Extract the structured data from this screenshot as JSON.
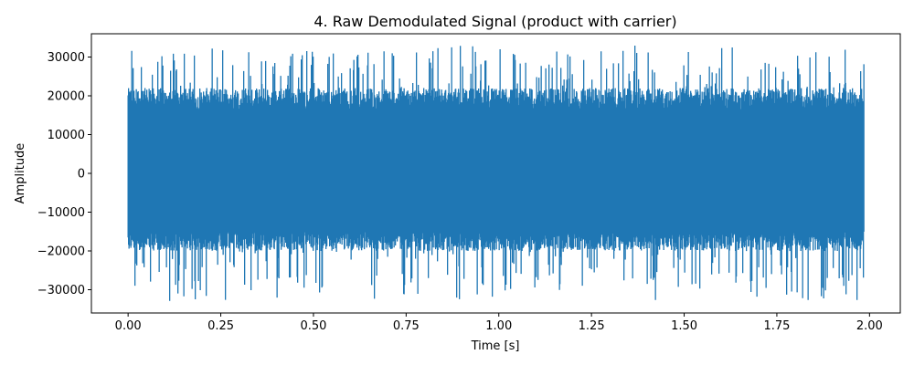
{
  "chart_data": {
    "type": "line",
    "title": "4. Raw Demodulated Signal (product with carrier)",
    "xlabel": "Time [s]",
    "ylabel": "Amplitude",
    "xlim": [
      -0.099,
      2.083
    ],
    "ylim": [
      -36000,
      36000
    ],
    "xticks": [
      0.0,
      0.25,
      0.5,
      0.75,
      1.0,
      1.25,
      1.5,
      1.75,
      2.0
    ],
    "xtick_labels": [
      "0.00",
      "0.25",
      "0.50",
      "0.75",
      "1.00",
      "1.25",
      "1.50",
      "1.75",
      "2.00"
    ],
    "yticks": [
      -30000,
      -20000,
      -10000,
      0,
      10000,
      20000,
      30000
    ],
    "ytick_labels": [
      "−30000",
      "−20000",
      "−10000",
      "0",
      "10000",
      "20000",
      "30000"
    ],
    "grid": false,
    "series": [
      {
        "name": "demodulated",
        "color": "#1f77b4",
        "x_range": [
          0.0,
          1.985
        ],
        "typical_band": [
          -20000,
          22000
        ],
        "peak_max": 33000,
        "peak_min": -33000
      }
    ]
  }
}
